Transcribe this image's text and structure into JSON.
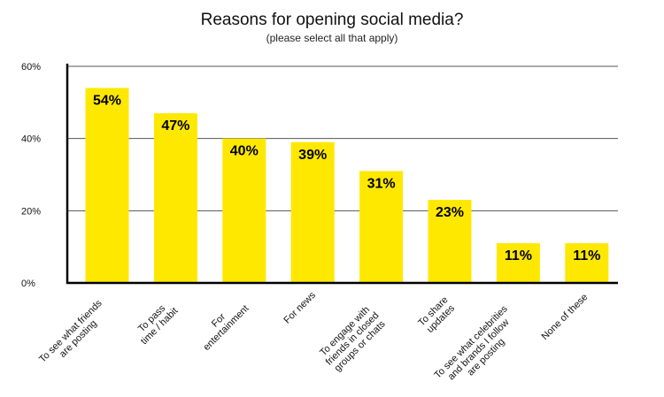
{
  "chart_data": {
    "type": "bar",
    "title": "Reasons for opening social media?",
    "subtitle": "(please select all that apply)",
    "xlabel": "",
    "ylabel": "",
    "ylim": [
      0,
      60
    ],
    "yticks": [
      0,
      20,
      40,
      60
    ],
    "ytick_labels": [
      "0%",
      "20%",
      "40%",
      "60%"
    ],
    "grid": true,
    "categories": [
      [
        "To see what friends",
        "are posting"
      ],
      [
        "To pass",
        "time / habit"
      ],
      [
        "For",
        "entertainment"
      ],
      [
        "For news"
      ],
      [
        "To engage with",
        "friends in closed",
        "groups or chats"
      ],
      [
        "To share",
        "updates"
      ],
      [
        "To see what celebrities",
        "and brands I follow",
        "are posting"
      ],
      [
        "None of these"
      ]
    ],
    "values": [
      54,
      47,
      40,
      39,
      31,
      23,
      11,
      11
    ],
    "value_labels": [
      "54%",
      "47%",
      "40%",
      "39%",
      "31%",
      "23%",
      "11%",
      "11%"
    ],
    "bar_color": "#FFE800",
    "grid_color": "#555555",
    "axis_color": "#000000"
  }
}
